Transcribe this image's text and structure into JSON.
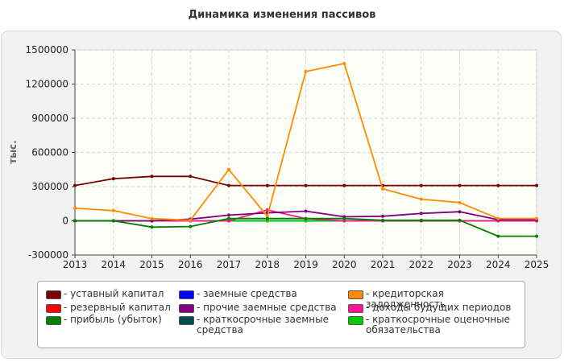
{
  "chart_data": {
    "type": "line",
    "title": "Динамика изменения пассивов",
    "ylabel": "тыс.",
    "xlabel": "",
    "x": [
      2013,
      2014,
      2015,
      2016,
      2017,
      2018,
      2019,
      2020,
      2021,
      2022,
      2023,
      2024,
      2025
    ],
    "ylim": [
      -300000,
      1500000
    ],
    "yticks": [
      -300000,
      0,
      300000,
      600000,
      900000,
      1200000,
      1500000
    ],
    "grid": true,
    "legend_position": "bottom",
    "series": [
      {
        "name": "уставный капитал",
        "color": "#7a0000",
        "values": [
          310000,
          370000,
          390000,
          390000,
          310000,
          310000,
          310000,
          310000,
          310000,
          310000,
          310000,
          310000,
          310000
        ]
      },
      {
        "name": "резервный капитал",
        "color": "#ff0000",
        "values": [
          0,
          0,
          0,
          0,
          0,
          0,
          0,
          0,
          0,
          0,
          0,
          0,
          0
        ]
      },
      {
        "name": "прибыль (убыток)",
        "color": "#008000",
        "values": [
          0,
          0,
          -55000,
          -50000,
          20000,
          20000,
          20000,
          20000,
          5000,
          5000,
          5000,
          -135000,
          -135000
        ]
      },
      {
        "name": "заемные средства",
        "color": "#0000ff",
        "values": [
          0,
          0,
          0,
          0,
          0,
          0,
          0,
          0,
          0,
          0,
          0,
          0,
          0
        ]
      },
      {
        "name": "прочие заемные средства",
        "color": "#800080",
        "values": [
          0,
          0,
          0,
          15000,
          50000,
          70000,
          85000,
          35000,
          40000,
          65000,
          80000,
          10000,
          10000
        ]
      },
      {
        "name": "краткосрочные заемные средства",
        "color": "#004d4d",
        "values": [
          0,
          0,
          0,
          0,
          0,
          0,
          0,
          0,
          0,
          0,
          0,
          0,
          0
        ]
      },
      {
        "name": "кредиторская задолженность",
        "color": "#ff8c00",
        "values": [
          110000,
          90000,
          20000,
          5000,
          450000,
          40000,
          1310000,
          1380000,
          280000,
          190000,
          160000,
          20000,
          20000
        ]
      },
      {
        "name": "доходы будущих периодов",
        "color": "#ff1493",
        "values": [
          0,
          0,
          0,
          0,
          0,
          95000,
          20000,
          0,
          0,
          0,
          0,
          0,
          0
        ]
      },
      {
        "name": "краткосрочные оценочные обязательства",
        "color": "#00cc00",
        "values": [
          0,
          0,
          0,
          0,
          0,
          0,
          0,
          0,
          0,
          0,
          0,
          0,
          0
        ]
      }
    ]
  }
}
